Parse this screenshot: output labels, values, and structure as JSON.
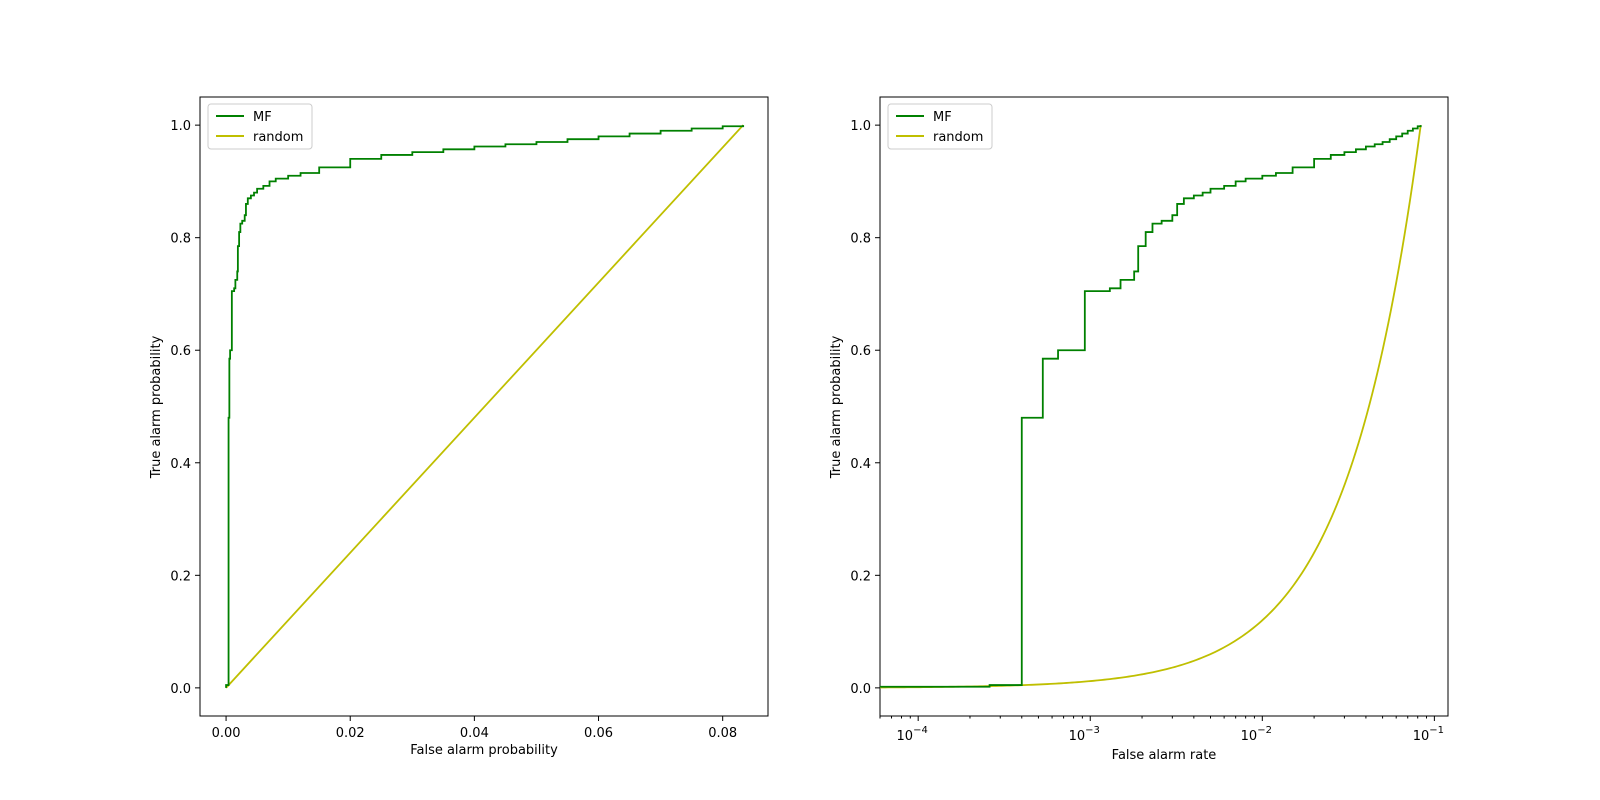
{
  "colors": {
    "mf": "#008000",
    "random": "#bfbf00",
    "axis": "#000000",
    "background": "#ffffff"
  },
  "chart_data": [
    {
      "type": "line",
      "xscale": "linear",
      "xlabel": "False alarm probability",
      "ylabel": "True alarm probability",
      "xlim": [
        -0.0042,
        0.0873
      ],
      "ylim": [
        -0.05,
        1.05
      ],
      "xticks": [
        {
          "value": 0.0,
          "label": "0.00"
        },
        {
          "value": 0.02,
          "label": "0.02"
        },
        {
          "value": 0.04,
          "label": "0.04"
        },
        {
          "value": 0.06,
          "label": "0.06"
        },
        {
          "value": 0.08,
          "label": "0.08"
        }
      ],
      "yticks": [
        {
          "value": 0.0,
          "label": "0.0"
        },
        {
          "value": 0.2,
          "label": "0.2"
        },
        {
          "value": 0.4,
          "label": "0.4"
        },
        {
          "value": 0.6,
          "label": "0.6"
        },
        {
          "value": 0.8,
          "label": "0.8"
        },
        {
          "value": 1.0,
          "label": "1.0"
        }
      ],
      "legend": {
        "position": "upper-left"
      },
      "series": [
        {
          "name": "MF",
          "color_key": "mf",
          "drawstyle": "step",
          "x": [
            0,
            0,
            0.0004,
            0.00053,
            0.00065,
            0.00093,
            0.0013,
            0.0015,
            0.0018,
            0.0019,
            0.0021,
            0.0023,
            0.0026,
            0.003,
            0.0032,
            0.0035,
            0.004,
            0.0045,
            0.005,
            0.006,
            0.007,
            0.008,
            0.01,
            0.012,
            0.015,
            0.02,
            0.025,
            0.03,
            0.035,
            0.04,
            0.045,
            0.05,
            0.055,
            0.06,
            0.065,
            0.07,
            0.075,
            0.08,
            0.0833
          ],
          "y": [
            0,
            0.005,
            0.48,
            0.585,
            0.6,
            0.705,
            0.71,
            0.725,
            0.74,
            0.785,
            0.81,
            0.825,
            0.83,
            0.84,
            0.86,
            0.87,
            0.875,
            0.88,
            0.887,
            0.892,
            0.9,
            0.905,
            0.91,
            0.915,
            0.925,
            0.94,
            0.947,
            0.952,
            0.957,
            0.962,
            0.966,
            0.97,
            0.975,
            0.98,
            0.985,
            0.99,
            0.994,
            0.998,
            1.0
          ]
        },
        {
          "name": "random",
          "color_key": "random",
          "drawstyle": "line",
          "x": [
            0,
            0.0833
          ],
          "y": [
            0,
            1.0
          ]
        }
      ]
    },
    {
      "type": "line",
      "xscale": "log",
      "xlabel": "False alarm rate",
      "ylabel": "True alarm probability",
      "xlim": [
        6e-05,
        0.12
      ],
      "ylim": [
        -0.05,
        1.05
      ],
      "xticks": [
        {
          "value": 0.0001,
          "base": "10",
          "exp": "−4"
        },
        {
          "value": 0.001,
          "base": "10",
          "exp": "−3"
        },
        {
          "value": 0.01,
          "base": "10",
          "exp": "−2"
        },
        {
          "value": 0.1,
          "base": "10",
          "exp": "−1"
        }
      ],
      "yticks": [
        {
          "value": 0.0,
          "label": "0.0"
        },
        {
          "value": 0.2,
          "label": "0.2"
        },
        {
          "value": 0.4,
          "label": "0.4"
        },
        {
          "value": 0.6,
          "label": "0.6"
        },
        {
          "value": 0.8,
          "label": "0.8"
        },
        {
          "value": 1.0,
          "label": "1.0"
        }
      ],
      "legend": {
        "position": "upper-left"
      },
      "series": [
        {
          "name": "MF",
          "color_key": "mf",
          "drawstyle": "step",
          "x": [
            6e-05,
            0.00026,
            0.0004,
            0.00053,
            0.00065,
            0.00093,
            0.0013,
            0.0015,
            0.0018,
            0.0019,
            0.0021,
            0.0023,
            0.0026,
            0.003,
            0.0032,
            0.0035,
            0.004,
            0.0045,
            0.005,
            0.006,
            0.007,
            0.008,
            0.01,
            0.012,
            0.015,
            0.02,
            0.025,
            0.03,
            0.035,
            0.04,
            0.045,
            0.05,
            0.055,
            0.06,
            0.065,
            0.07,
            0.075,
            0.08,
            0.0833
          ],
          "y": [
            0.002,
            0.005,
            0.48,
            0.585,
            0.6,
            0.705,
            0.71,
            0.725,
            0.74,
            0.785,
            0.81,
            0.825,
            0.83,
            0.84,
            0.86,
            0.87,
            0.875,
            0.88,
            0.887,
            0.892,
            0.9,
            0.905,
            0.91,
            0.915,
            0.925,
            0.94,
            0.947,
            0.952,
            0.957,
            0.962,
            0.966,
            0.97,
            0.975,
            0.98,
            0.985,
            0.99,
            0.994,
            0.998,
            1.0
          ]
        },
        {
          "name": "random",
          "color_key": "random",
          "drawstyle": "line",
          "x": [
            6e-05,
            0.0001,
            0.0002,
            0.0005,
            0.001,
            0.002,
            0.003,
            0.005,
            0.007,
            0.01,
            0.015,
            0.02,
            0.03,
            0.04,
            0.05,
            0.06,
            0.07,
            0.0833
          ],
          "y": [
            0.001,
            0.001,
            0.002,
            0.004,
            0.01,
            0.024,
            0.036,
            0.06,
            0.084,
            0.12,
            0.18,
            0.24,
            0.36,
            0.48,
            0.6,
            0.72,
            0.84,
            1.0
          ]
        }
      ]
    }
  ]
}
